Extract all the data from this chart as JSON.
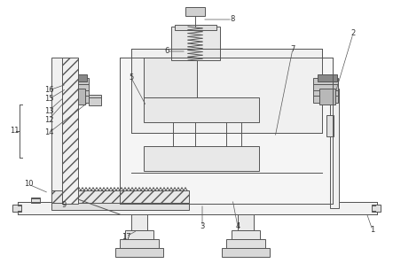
{
  "bg_color": "#ffffff",
  "line_color": "#555555",
  "label_color": "#333333",
  "figsize": [
    4.43,
    3.15
  ],
  "dpi": 100,
  "lw": 0.7,
  "label_fs": 6.0
}
